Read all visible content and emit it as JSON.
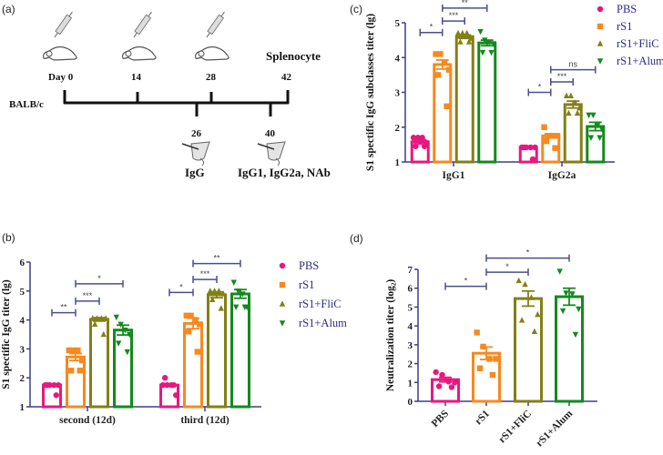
{
  "figure": {
    "panel_labels": [
      "(a)",
      "(b)",
      "(c)",
      "(d)"
    ]
  },
  "colors": {
    "PBS": "#e8177f",
    "rS1": "#f7891f",
    "rS1+FliC": "#838016",
    "rS1+Alum": "#138a1e",
    "axis": "#3a3e8c",
    "legend_text": "#2a2a8a"
  },
  "timeline": {
    "strain": "BALB/c",
    "top_days": [
      "Day 0",
      "14",
      "28",
      "42"
    ],
    "bottom_days": [
      "26",
      "40"
    ],
    "endpoint_label": "Splenocyte",
    "bottom_labels": [
      "IgG",
      "IgG1, IgG2a, NAb"
    ],
    "icons": [
      "mouse-syringe-icon",
      "mouse-syringe-icon",
      "mouse-syringe-icon",
      "blood-sampling-icon",
      "blood-sampling-icon"
    ]
  },
  "chart_data": [
    {
      "panel": "(b)",
      "type": "bar",
      "title": "",
      "xlabel": "",
      "ylabel": "S1 spectific IgG titer (lg)",
      "ylim": [
        1,
        6
      ],
      "yticks": [
        "1",
        "2",
        "3",
        "4",
        "5",
        "6"
      ],
      "categories": [
        "second (12d)",
        "third (12d)"
      ],
      "legend": [
        "PBS",
        "rS1",
        "rS1+FliC",
        "rS1+Alum"
      ],
      "legend_position": "right",
      "series": [
        {
          "name": "PBS",
          "marker": "circle",
          "values": [
            1.75,
            1.75
          ],
          "sem": [
            0.0,
            0.05
          ],
          "points": [
            [
              1.75,
              1.75,
              1.75,
              1.75,
              1.75,
              1.4
            ],
            [
              1.75,
              1.75,
              1.75,
              1.4,
              2.0,
              1.75
            ]
          ]
        },
        {
          "name": "rS1",
          "marker": "square",
          "values": [
            2.72,
            3.88
          ],
          "sem": [
            0.12,
            0.18
          ],
          "points": [
            [
              2.95,
              2.95,
              2.95,
              2.6,
              2.25,
              2.25
            ],
            [
              4.15,
              4.15,
              4.0,
              3.85,
              3.6,
              2.9
            ]
          ]
        },
        {
          "name": "rS1+FliC",
          "marker": "triangle-up",
          "values": [
            4.02,
            4.87
          ],
          "sem": [
            0.06,
            0.1
          ],
          "points": [
            [
              4.05,
              4.05,
              4.05,
              4.05,
              3.85,
              3.5
            ],
            [
              5.0,
              5.0,
              5.0,
              4.9,
              4.7,
              4.4
            ]
          ]
        },
        {
          "name": "rS1+Alum",
          "marker": "triangle-down",
          "values": [
            3.65,
            4.9
          ],
          "sem": [
            0.17,
            0.15
          ],
          "points": [
            [
              4.1,
              3.85,
              3.65,
              3.5,
              3.2,
              2.9
            ],
            [
              5.3,
              5.0,
              4.9,
              4.45,
              4.45,
              4.45
            ]
          ]
        }
      ],
      "significance": [
        {
          "group": 0,
          "from": 0,
          "to": 1,
          "label": "**",
          "y": 4.25
        },
        {
          "group": 0,
          "from": 1,
          "to": 2,
          "label": "***",
          "y": 4.65
        },
        {
          "group": 0,
          "from": 1,
          "to": 3,
          "label": "*",
          "y": 5.25
        },
        {
          "group": 1,
          "from": 0,
          "to": 1,
          "label": "*",
          "y": 4.95
        },
        {
          "group": 1,
          "from": 1,
          "to": 2,
          "label": "***",
          "y": 5.4
        },
        {
          "group": 1,
          "from": 1,
          "to": 3,
          "label": "**",
          "y": 5.95
        }
      ]
    },
    {
      "panel": "(c)",
      "type": "bar",
      "title": "",
      "xlabel": "",
      "ylabel": "S1 spectific IgG subclasses titer (lg)",
      "ylim": [
        1,
        5
      ],
      "yticks": [
        "1",
        "2",
        "3",
        "4",
        "5"
      ],
      "categories": [
        "IgG1",
        "IgG2a"
      ],
      "legend": [
        "PBS",
        "rS1",
        "rS1+FliC",
        "rS1+Alum"
      ],
      "legend_position": "top-right",
      "series": [
        {
          "name": "PBS",
          "marker": "circle",
          "values": [
            1.58,
            1.42
          ],
          "sem": [
            0.06,
            0.0
          ],
          "points": [
            [
              1.7,
              1.7,
              1.7,
              1.55,
              1.45,
              1.45
            ],
            [
              1.42,
              1.42,
              1.42,
              1.42,
              1.42,
              1.08
            ]
          ]
        },
        {
          "name": "rS1",
          "marker": "square",
          "values": [
            3.8,
            1.75
          ],
          "sem": [
            0.13,
            0.06
          ],
          "points": [
            [
              4.1,
              4.1,
              3.85,
              3.65,
              3.5,
              2.6
            ],
            [
              2.0,
              1.75,
              1.75,
              1.75,
              1.6,
              1.4
            ]
          ]
        },
        {
          "name": "rS1+FliC",
          "marker": "triangle-up",
          "values": [
            4.6,
            2.65
          ],
          "sem": [
            0.05,
            0.1
          ],
          "points": [
            [
              4.7,
              4.7,
              4.7,
              4.55,
              4.45,
              4.45
            ],
            [
              2.9,
              2.9,
              2.7,
              2.55,
              2.4,
              2.4
            ]
          ]
        },
        {
          "name": "rS1+Alum",
          "marker": "triangle-down",
          "values": [
            4.42,
            2.02
          ],
          "sem": [
            0.08,
            0.12
          ],
          "points": [
            [
              4.75,
              4.5,
              4.45,
              4.4,
              4.15,
              4.15
            ],
            [
              2.35,
              2.35,
              2.05,
              1.95,
              1.7,
              1.7
            ]
          ]
        }
      ],
      "significance": [
        {
          "group": 0,
          "from": 0,
          "to": 1,
          "label": "*",
          "y": 4.72
        },
        {
          "group": 0,
          "from": 1,
          "to": 2,
          "label": "***",
          "y": 5.05
        },
        {
          "group": 0,
          "from": 1,
          "to": 3,
          "label": "**",
          "y": 5.42
        },
        {
          "group": 1,
          "from": 0,
          "to": 1,
          "label": "*",
          "y": 3.0
        },
        {
          "group": 1,
          "from": 1,
          "to": 2,
          "label": "***",
          "y": 3.3
        },
        {
          "group": 1,
          "from": 1,
          "to": 3,
          "label": "ns",
          "y": 3.65
        }
      ]
    },
    {
      "panel": "(d)",
      "type": "bar",
      "title": "",
      "xlabel": "",
      "ylabel": "Neutralization titer (log₂)",
      "ylim": [
        0,
        7
      ],
      "yticks": [
        "0",
        "1",
        "2",
        "3",
        "4",
        "5",
        "6",
        "7"
      ],
      "categories": [
        "PBS",
        "rS1",
        "rS1+FliC",
        "rS1+Alum"
      ],
      "series": [
        {
          "name": "PBS",
          "marker": "circle",
          "values": [
            1.15
          ],
          "sem": [
            0.12
          ],
          "points": [
            [
              1.55,
              1.4,
              1.05,
              1.0,
              0.8,
              0.75
            ]
          ]
        },
        {
          "name": "rS1",
          "marker": "square",
          "values": [
            2.55
          ],
          "sem": [
            0.33
          ],
          "points": [
            [
              3.65,
              2.9,
              2.25,
              2.25,
              1.75,
              1.4
            ]
          ]
        },
        {
          "name": "rS1+FliC",
          "marker": "triangle-up",
          "values": [
            5.45
          ],
          "sem": [
            0.4
          ],
          "points": [
            [
              6.4,
              6.2,
              5.5,
              4.6,
              4.3,
              3.7
            ]
          ]
        },
        {
          "name": "rS1+Alum",
          "marker": "triangle-down",
          "values": [
            5.55
          ],
          "sem": [
            0.45
          ],
          "points": [
            [
              6.9,
              5.75,
              5.7,
              4.9,
              4.8,
              3.55
            ]
          ]
        }
      ],
      "significance": [
        {
          "from": 0,
          "to": 1,
          "label": "*",
          "y": 6.1
        },
        {
          "from": 1,
          "to": 2,
          "label": "*",
          "y": 6.85
        },
        {
          "from": 1,
          "to": 3,
          "label": "*",
          "y": 7.6
        }
      ]
    }
  ]
}
